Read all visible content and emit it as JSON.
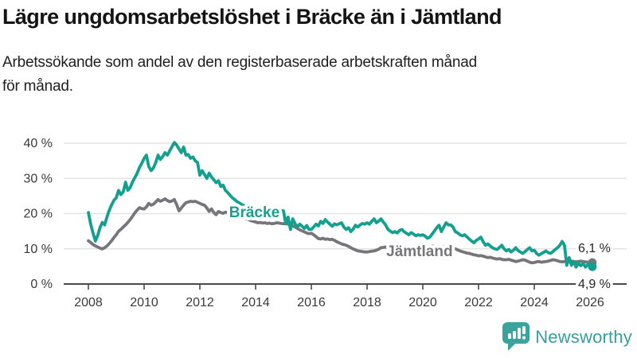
{
  "page": {
    "title": "Lägre ungdomsarbetslöshet i Bräcke än i Jämtland",
    "subtitle_line1": "Arbetssökande som andel av den registerbaserade arbetskraften månad",
    "subtitle_line2": "för månad."
  },
  "footer": {
    "brand": "Newsworthy",
    "logo_icon": "newsworthy-bubble-barchart-icon"
  },
  "colors": {
    "bracke_teal": "#13a08f",
    "jamtland_gray": "#76767a",
    "grid": "#e4e4e4",
    "axis": "#4a4a4a",
    "tick_text": "#3a3a3a",
    "annotation_text": "#262626",
    "brand_teal": "#35a19c"
  },
  "chart_data": {
    "type": "line",
    "title": "Lägre ungdomsarbetslöshet i Bräcke än i Jämtland",
    "subtitle": "Arbetssökande som andel av den registerbaserade arbetskraften månad för månad.",
    "x_start_year": 2008,
    "points_per_year": 12,
    "x_tick_years": [
      2008,
      2010,
      2012,
      2014,
      2016,
      2018,
      2020,
      2022,
      2024,
      2026
    ],
    "x_tick_labels": [
      "2008",
      "2010",
      "2012",
      "2014",
      "2016",
      "2018",
      "2020",
      "2022",
      "2024",
      "2026"
    ],
    "y_ticks": [
      0,
      10,
      20,
      30,
      40
    ],
    "y_tick_labels": [
      "0 %",
      "10 %",
      "20 %",
      "30 %",
      "40 %"
    ],
    "ylim": [
      0,
      42
    ],
    "grid": true,
    "legend": "inline-labels",
    "series": [
      {
        "name": "Bräcke",
        "color": "#13a08f",
        "end_value": 4.9,
        "inline_label": {
          "text": "Bräcke",
          "year": 2013.05,
          "pct": 19.0,
          "anchor": "start"
        },
        "end_label": {
          "text": "4,9 %",
          "year": 2026.74,
          "pct": -1.1,
          "anchor": "end"
        },
        "values": [
          20.3,
          17.0,
          14.5,
          12.2,
          13.8,
          16.0,
          17.5,
          16.8,
          19.0,
          21.0,
          22.5,
          23.8,
          24.5,
          26.6,
          25.4,
          26.2,
          28.9,
          26.6,
          27.4,
          29.0,
          30.2,
          31.5,
          33.1,
          34.3,
          35.7,
          36.6,
          33.4,
          32.2,
          33.0,
          34.5,
          36.6,
          35.4,
          36.2,
          37.3,
          36.6,
          37.8,
          39.0,
          40.2,
          39.5,
          38.4,
          37.3,
          38.9,
          36.6,
          36.8,
          35.7,
          36.1,
          35.0,
          34.5,
          30.9,
          32.2,
          31.1,
          30.0,
          31.5,
          30.4,
          29.6,
          28.8,
          29.3,
          27.7,
          28.1,
          26.6,
          26.0,
          25.2,
          24.5,
          24.0,
          23.4,
          23.0,
          22.6,
          22.3,
          22.0,
          21.8,
          21.5,
          21.3,
          21.0,
          20.8,
          20.5,
          20.3,
          20.6,
          20.2,
          19.9,
          20.1,
          19.8,
          20.2,
          20.5,
          20.9,
          20.8,
          17.1,
          19.0,
          15.5,
          18.5,
          17.1,
          16.2,
          17.0,
          16.4,
          15.8,
          16.6,
          15.5,
          15.5,
          16.2,
          17.0,
          16.5,
          17.8,
          17.2,
          18.3,
          17.6,
          17.0,
          16.4,
          17.1,
          16.8,
          17.1,
          17.4,
          16.2,
          15.5,
          16.0,
          14.9,
          15.6,
          16.7,
          16.2,
          16.8,
          17.2,
          17.0,
          17.4,
          17.0,
          17.8,
          18.5,
          17.4,
          17.9,
          18.5,
          17.6,
          16.8,
          15.5,
          15.0,
          14.6,
          14.9,
          14.5,
          15.2,
          15.5,
          14.8,
          14.4,
          14.0,
          14.6,
          14.2,
          13.7,
          14.0,
          13.8,
          14.0,
          13.6,
          13.0,
          13.3,
          14.2,
          15.1,
          16.0,
          16.7,
          14.9,
          16.2,
          17.4,
          16.8,
          16.8,
          16.2,
          14.9,
          14.5,
          14.0,
          13.7,
          14.0,
          13.4,
          12.8,
          12.2,
          11.7,
          12.4,
          12.8,
          13.3,
          12.0,
          11.0,
          11.4,
          10.8,
          10.3,
          10.0,
          9.8,
          10.4,
          11.0,
          10.0,
          9.4,
          9.8,
          9.1,
          9.6,
          10.3,
          9.5,
          9.1,
          8.7,
          9.2,
          9.8,
          10.3,
          9.4,
          9.6,
          8.7,
          8.2,
          8.6,
          9.0,
          9.4,
          8.9,
          8.7,
          9.2,
          9.8,
          10.3,
          11.0,
          12.1,
          11.0,
          5.3,
          7.5,
          5.3,
          6.4,
          4.8,
          5.9,
          5.2,
          5.9,
          4.8,
          5.5,
          5.8,
          4.9
        ]
      },
      {
        "name": "Jämtland",
        "color": "#76767a",
        "end_value": 6.1,
        "inline_label": {
          "text": "Jämtland",
          "year": 2018.69,
          "pct": 7.9,
          "anchor": "start"
        },
        "end_label": {
          "text": "6,1 %",
          "year": 2026.74,
          "pct": 9.0,
          "anchor": "end"
        },
        "values": [
          12.3,
          11.8,
          11.2,
          10.8,
          10.5,
          10.2,
          10.0,
          10.3,
          10.8,
          11.5,
          12.3,
          13.2,
          14.0,
          15.0,
          15.5,
          16.2,
          16.8,
          17.5,
          18.3,
          19.2,
          20.2,
          21.0,
          21.7,
          21.4,
          21.3,
          21.9,
          22.9,
          22.4,
          22.7,
          23.3,
          24.0,
          23.5,
          23.8,
          24.2,
          23.7,
          23.4,
          23.6,
          24.0,
          22.6,
          20.8,
          21.6,
          22.4,
          23.1,
          23.3,
          23.5,
          23.4,
          23.5,
          23.2,
          22.9,
          22.6,
          22.4,
          21.6,
          20.6,
          21.3,
          20.3,
          19.7,
          20.6,
          20.3,
          20.1,
          20.4,
          20.3,
          20.2,
          20.4,
          20.1,
          19.8,
          19.5,
          19.2,
          18.9,
          18.6,
          18.3,
          18.0,
          17.8,
          17.6,
          17.4,
          17.5,
          17.3,
          17.4,
          17.2,
          17.3,
          17.1,
          17.2,
          17.4,
          17.3,
          17.2,
          17.1,
          17.2,
          17.0,
          16.8,
          16.5,
          16.2,
          15.8,
          15.4,
          15.1,
          14.8,
          14.5,
          14.3,
          14.4,
          14.0,
          13.5,
          12.9,
          12.8,
          13.0,
          12.7,
          12.8,
          12.6,
          12.7,
          12.4,
          12.0,
          11.7,
          11.4,
          11.2,
          11.0,
          10.7,
          10.3,
          10.0,
          9.7,
          9.4,
          9.3,
          9.2,
          9.1,
          9.1,
          9.2,
          9.3,
          9.4,
          9.6,
          9.9,
          10.3,
          10.4,
          10.5,
          10.3,
          10.2,
          10.4,
          10.3,
          10.1,
          10.0,
          9.9,
          9.8,
          9.7,
          9.6,
          9.5,
          9.4,
          9.3,
          9.2,
          9.1,
          9.5,
          9.8,
          10.2,
          10.6,
          10.8,
          10.7,
          10.5,
          10.6,
          10.7,
          10.5,
          10.4,
          10.6,
          10.4,
          10.2,
          10.0,
          9.7,
          9.4,
          9.2,
          9.0,
          8.8,
          8.7,
          8.5,
          8.3,
          8.2,
          8.0,
          8.1,
          7.9,
          7.7,
          7.5,
          7.6,
          7.4,
          7.2,
          7.1,
          7.2,
          7.0,
          6.9,
          6.9,
          7.0,
          6.8,
          6.6,
          6.4,
          6.5,
          6.7,
          6.9,
          6.8,
          6.5,
          6.2,
          6.0,
          6.1,
          6.3,
          6.4,
          6.2,
          6.3,
          6.4,
          6.5,
          6.7,
          6.9,
          6.8,
          6.6,
          6.4,
          6.3,
          6.4,
          6.5,
          6.6,
          6.5,
          6.4,
          6.3,
          6.4,
          6.5,
          6.4,
          6.3,
          6.2,
          6.2,
          6.1
        ]
      }
    ]
  }
}
